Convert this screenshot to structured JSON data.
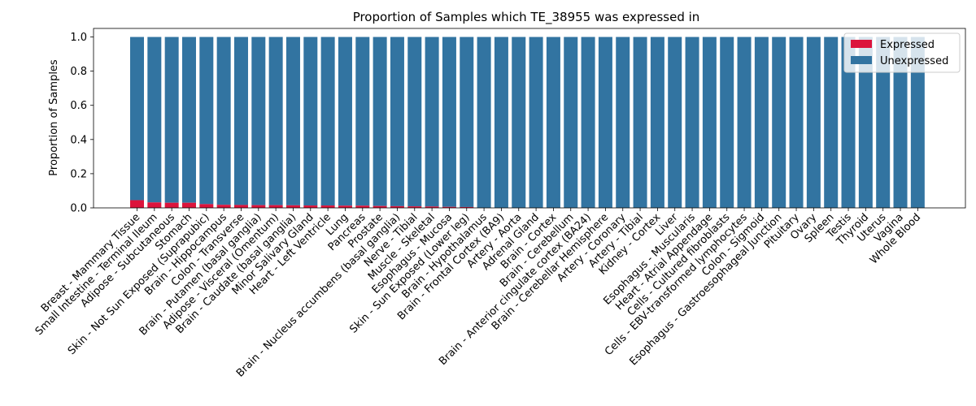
{
  "chart_data": {
    "type": "bar",
    "stacked": true,
    "title": "Proportion of Samples which TE_38955 was expressed in",
    "xlabel": "",
    "ylabel": "Proportion of Samples",
    "ylim": [
      0,
      1.05
    ],
    "yticks": [
      "0.0",
      "0.2",
      "0.4",
      "0.6",
      "0.8",
      "1.0"
    ],
    "legend_position": "top-right",
    "categories": [
      "Breast - Mammary Tissue",
      "Small Intestine - Terminal Ileum",
      "Adipose - Subcutaneous",
      "Stomach",
      "Skin - Not Sun Exposed (Suprapubic)",
      "Brain - Hippocampus",
      "Colon - Transverse",
      "Brain - Putamen (basal ganglia)",
      "Adipose - Visceral (Omentum)",
      "Brain - Caudate (basal ganglia)",
      "Minor Salivary Gland",
      "Heart - Left Ventricle",
      "Lung",
      "Pancreas",
      "Prostate",
      "Brain - Nucleus accumbens (basal ganglia)",
      "Nerve - Tibial",
      "Muscle - Skeletal",
      "Esophagus - Mucosa",
      "Skin - Sun Exposed (Lower leg)",
      "Brain - Hypothalamus",
      "Brain - Frontal Cortex (BA9)",
      "Artery - Aorta",
      "Adrenal Gland",
      "Brain - Cortex",
      "Brain - Cerebellum",
      "Brain - Anterior cingulate cortex (BA24)",
      "Brain - Cerebellar Hemisphere",
      "Artery - Coronary",
      "Artery - Tibial",
      "Kidney - Cortex",
      "Liver",
      "Esophagus - Muscularis",
      "Heart - Atrial Appendage",
      "Cells - Cultured fibroblasts",
      "Cells - EBV-transformed lymphocytes",
      "Colon - Sigmoid",
      "Esophagus - Gastroesophageal Junction",
      "Pituitary",
      "Ovary",
      "Spleen",
      "Testis",
      "Thyroid",
      "Uterus",
      "Vagina",
      "Whole Blood"
    ],
    "series": [
      {
        "name": "Expressed",
        "color": "#dc143c",
        "values": [
          0.045,
          0.032,
          0.03,
          0.03,
          0.022,
          0.018,
          0.017,
          0.016,
          0.016,
          0.015,
          0.014,
          0.014,
          0.013,
          0.013,
          0.011,
          0.01,
          0.009,
          0.008,
          0.006,
          0.005,
          0,
          0,
          0,
          0,
          0,
          0,
          0,
          0,
          0,
          0,
          0,
          0,
          0,
          0,
          0,
          0,
          0,
          0,
          0,
          0,
          0,
          0,
          0,
          0,
          0,
          0
        ]
      },
      {
        "name": "Unexpressed",
        "color": "#3274a1",
        "values": [
          0.955,
          0.968,
          0.97,
          0.97,
          0.978,
          0.982,
          0.983,
          0.984,
          0.984,
          0.985,
          0.986,
          0.986,
          0.987,
          0.987,
          0.989,
          0.99,
          0.991,
          0.992,
          0.994,
          0.995,
          1,
          1,
          1,
          1,
          1,
          1,
          1,
          1,
          1,
          1,
          1,
          1,
          1,
          1,
          1,
          1,
          1,
          1,
          1,
          1,
          1,
          1,
          1,
          1,
          1,
          1
        ]
      }
    ]
  }
}
